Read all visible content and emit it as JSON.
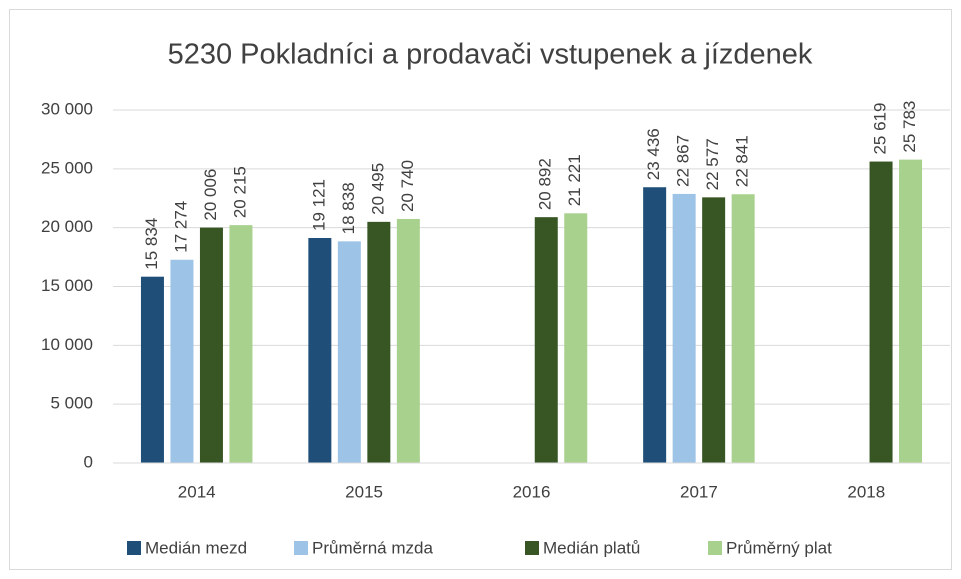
{
  "chart_data": {
    "type": "bar",
    "title": "5230 Pokladníci a prodavači vstupenek a jízdenek",
    "categories": [
      "2014",
      "2015",
      "2016",
      "2017",
      "2018"
    ],
    "series": [
      {
        "name": "Medián mezd",
        "color": "#1f4e79",
        "values": [
          15834,
          19121,
          null,
          23436,
          null
        ],
        "value_labels": [
          "15 834",
          "19 121",
          null,
          "23 436",
          null
        ]
      },
      {
        "name": "Průměrná mzda",
        "color": "#9dc3e6",
        "values": [
          17274,
          18838,
          null,
          22867,
          null
        ],
        "value_labels": [
          "17 274",
          "18 838",
          null,
          "22 867",
          null
        ]
      },
      {
        "name": "Medián platů",
        "color": "#375623",
        "values": [
          20006,
          20495,
          20892,
          22577,
          25619
        ],
        "value_labels": [
          "20 006",
          "20 495",
          "20 892",
          "22 577",
          "25 619"
        ]
      },
      {
        "name": "Průměrný plat",
        "color": "#a9d18e",
        "values": [
          20215,
          20740,
          21221,
          22841,
          25783
        ],
        "value_labels": [
          "20 215",
          "20 740",
          "21 221",
          "22 841",
          "25 783"
        ]
      }
    ],
    "ylim": [
      0,
      30000
    ],
    "yticks": [
      0,
      {
        "value": 5000,
        "label": "5 000"
      },
      {
        "value": 10000,
        "label": "10 000"
      },
      {
        "value": 15000,
        "label": "15 000"
      },
      {
        "value": 20000,
        "label": "20 000"
      },
      {
        "value": 25000,
        "label": "25 000"
      },
      {
        "value": 30000,
        "label": "30 000"
      }
    ],
    "grid": true,
    "legend": "bottom"
  }
}
